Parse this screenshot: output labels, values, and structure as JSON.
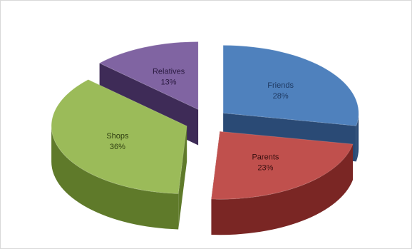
{
  "chart_data": {
    "type": "pie",
    "three_d": true,
    "exploded": true,
    "title": "",
    "legend": "none",
    "slices": [
      {
        "label": "Friends",
        "value": 28,
        "value_label": "28%",
        "color": "#4F81BD",
        "side_color": "#2A4A75",
        "label_color": "#1F3A63"
      },
      {
        "label": "Parents",
        "value": 23,
        "value_label": "23%",
        "color": "#C0504D",
        "side_color": "#7A2624",
        "label_color": "#3A1010"
      },
      {
        "label": "Shops",
        "value": 36,
        "value_label": "36%",
        "color": "#9BBB59",
        "side_color": "#5F7A2A",
        "label_color": "#2E3D10"
      },
      {
        "label": "Relatives",
        "value": 13,
        "value_label": "13%",
        "color": "#8064A2",
        "side_color": "#3E2B57",
        "label_color": "#2A1A40"
      }
    ]
  }
}
